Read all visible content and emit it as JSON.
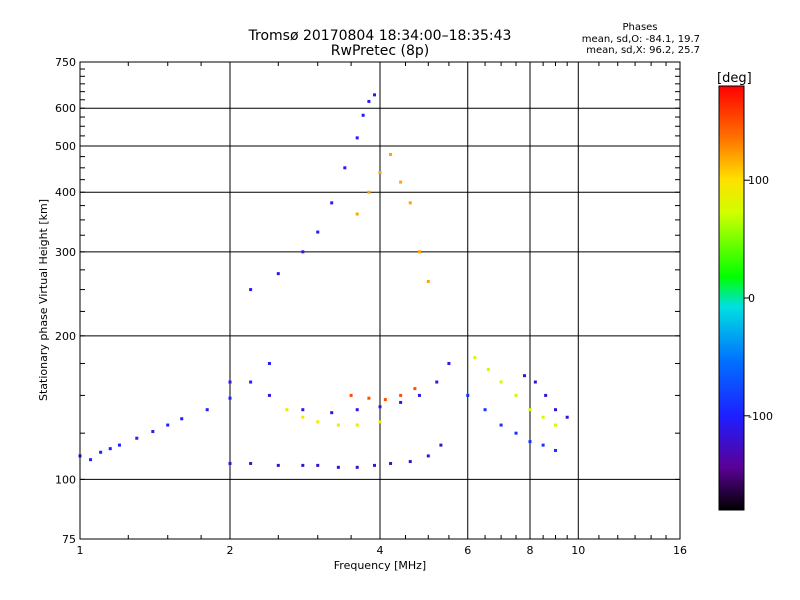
{
  "header": {
    "title": "Tromsø 20170804 18:34:00–18:35:43",
    "subtitle": "RwPretec (8p)",
    "stats_title": "Phases",
    "stats_o": "mean, sd,O:  -84.1, 19.7",
    "stats_x": "mean, sd,X:  96.2, 25.7"
  },
  "chart_data": {
    "type": "scatter",
    "title": "Tromsø 20170804 18:34:00–18:35:43",
    "subtitle": "RwPretec (8p)",
    "xlabel": "Frequency [MHz]",
    "ylabel": "Stationary phase Virtual Height [km]",
    "x_scale": "log2",
    "y_scale": "log",
    "xlim": [
      1,
      16
    ],
    "ylim": [
      75,
      750
    ],
    "x_ticks": [
      1,
      2,
      4,
      6,
      8,
      10,
      16
    ],
    "x_tick_labels": [
      "1",
      "2",
      "4",
      "6",
      "8",
      "10",
      "16"
    ],
    "x_grid": [
      2,
      4,
      6,
      8,
      10
    ],
    "y_ticks": [
      75,
      100,
      200,
      300,
      400,
      500,
      600,
      750
    ],
    "y_tick_labels": [
      "75",
      "100",
      "200",
      "300",
      "400",
      "500",
      "600",
      "750"
    ],
    "y_grid": [
      100,
      200,
      300,
      400,
      500,
      600
    ],
    "grid": true,
    "colorbar": {
      "label": "[deg]",
      "range": [
        -180,
        180
      ],
      "ticks": [
        100,
        0,
        -100
      ],
      "tick_labels": [
        "100",
        "0",
        "-100"
      ],
      "colormap": "rainbow (black-purple-blue-cyan-green-yellow-red)"
    },
    "series": [
      {
        "x": [
          1.0,
          1.05,
          1.1,
          1.15,
          1.2,
          1.3,
          1.4,
          1.5,
          1.6,
          1.8,
          2.0,
          2.2,
          2.4
        ],
        "y": [
          112,
          110,
          114,
          116,
          118,
          122,
          126,
          130,
          134,
          140,
          148,
          160,
          175
        ],
        "phase": -100
      },
      {
        "x": [
          2.0,
          2.2,
          2.5,
          2.8,
          3.0,
          3.3,
          3.6,
          3.9,
          4.2,
          4.6,
          5.0,
          5.3
        ],
        "y": [
          108,
          108,
          107,
          107,
          107,
          106,
          106,
          107,
          108,
          109,
          112,
          118
        ],
        "phase": -120
      },
      {
        "x": [
          2.0,
          2.4,
          2.8,
          3.2,
          3.6,
          4.0,
          4.4,
          4.8,
          5.2,
          5.5
        ],
        "y": [
          160,
          150,
          140,
          138,
          140,
          142,
          145,
          150,
          160,
          175
        ],
        "phase": -110
      },
      {
        "x": [
          2.2,
          2.5,
          2.8,
          3.0,
          3.2,
          3.4,
          3.6,
          3.7,
          3.8,
          3.9
        ],
        "y": [
          250,
          270,
          300,
          330,
          380,
          450,
          520,
          580,
          620,
          640
        ],
        "phase": -105
      },
      {
        "x": [
          3.6,
          3.8,
          4.0,
          4.2,
          4.4,
          4.6,
          4.8,
          5.0
        ],
        "y": [
          360,
          400,
          440,
          480,
          420,
          380,
          300,
          260
        ],
        "phase": 120
      },
      {
        "x": [
          2.6,
          2.8,
          3.0,
          3.3,
          3.6,
          4.0
        ],
        "y": [
          140,
          135,
          132,
          130,
          130,
          132
        ],
        "phase": 90
      },
      {
        "x": [
          3.5,
          3.8,
          4.1,
          4.4,
          4.7
        ],
        "y": [
          150,
          148,
          147,
          150,
          155
        ],
        "phase": 150
      },
      {
        "x": [
          6.2,
          6.6,
          7.0,
          7.5,
          8.0,
          8.5,
          9.0
        ],
        "y": [
          180,
          170,
          160,
          150,
          140,
          135,
          130
        ],
        "phase": 80
      },
      {
        "x": [
          6.0,
          6.5,
          7.0,
          7.5,
          8.0,
          8.5,
          9.0
        ],
        "y": [
          150,
          140,
          130,
          125,
          120,
          118,
          115
        ],
        "phase": -90
      },
      {
        "x": [
          7.8,
          8.2,
          8.6,
          9.0,
          9.5
        ],
        "y": [
          165,
          160,
          150,
          140,
          135
        ],
        "phase": -120
      }
    ]
  }
}
